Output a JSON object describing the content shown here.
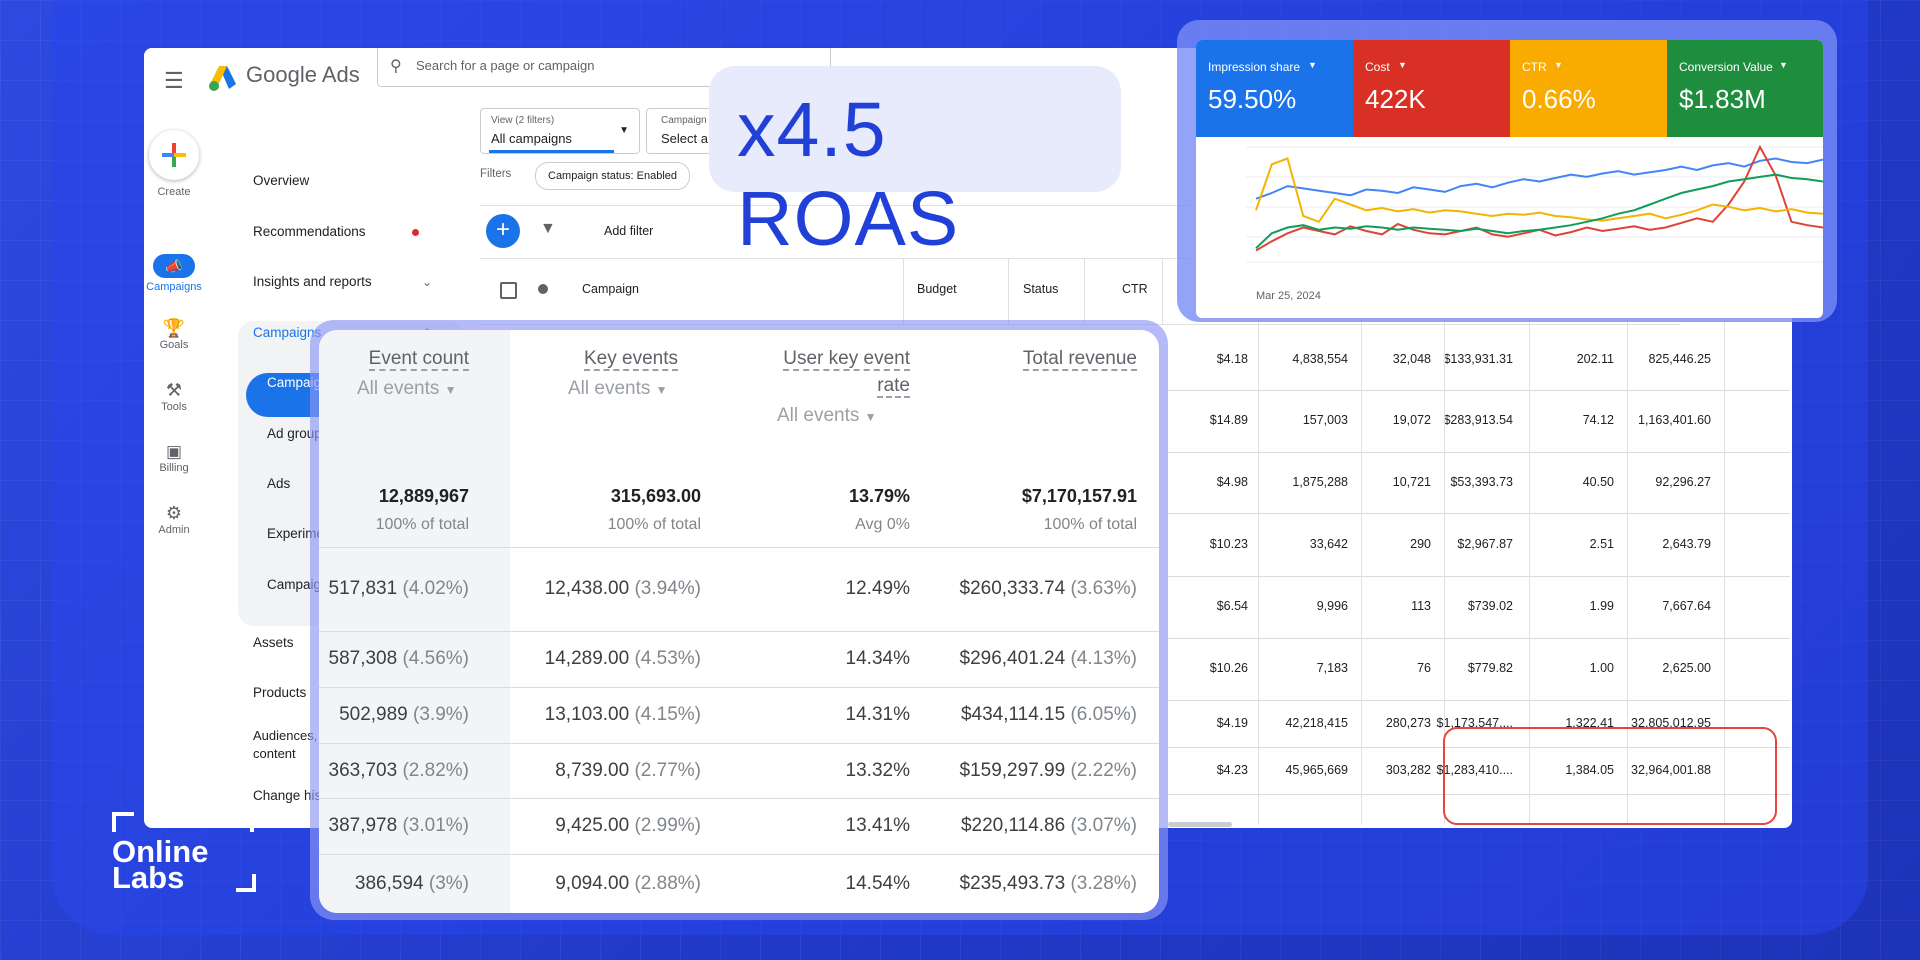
{
  "brand": {
    "name": "Google Ads",
    "search_placeholder": "Search for a page or campaign",
    "menu_icon": "hamburger-icon"
  },
  "rail": [
    {
      "label": "Create",
      "icon": "plus-icon"
    },
    {
      "label": "Campaigns",
      "icon": "megaphone-icon"
    },
    {
      "label": "Goals",
      "icon": "trophy-icon"
    },
    {
      "label": "Tools",
      "icon": "tools-icon"
    },
    {
      "label": "Billing",
      "icon": "credit-card-icon"
    },
    {
      "label": "Admin",
      "icon": "gear-icon"
    }
  ],
  "nav": {
    "overview": "Overview",
    "recommendations": "Recommendations",
    "insights": "Insights and reports",
    "campaigns_section": "Campaigns",
    "campaigns": "Campaigns",
    "ad_groups": "Ad groups",
    "ads": "Ads",
    "experiments": "Experimen",
    "campaign_x": "Campaign",
    "assets": "Assets",
    "products": "Products",
    "audiences_1": "Audiences, k",
    "audiences_2": "content",
    "change_history": "Change histo"
  },
  "controls": {
    "view_small": "View (2 filters)",
    "view_main": "All campaigns",
    "camp_small": "Campaign",
    "camp_main": "Select a",
    "filters_label": "Filters",
    "chip": "Campaign status: Enabled",
    "add_filter": "Add filter"
  },
  "table_headers": {
    "campaign": "Campaign",
    "budget": "Budget",
    "status": "Status",
    "ctr": "CTR"
  },
  "right_table": [
    [
      "$4.18",
      "4,838,554",
      "32,048",
      "$133,931.31",
      "202.11",
      "825,446.25"
    ],
    [
      "$14.89",
      "157,003",
      "19,072",
      "$283,913.54",
      "74.12",
      "1,163,401.60"
    ],
    [
      "$4.98",
      "1,875,288",
      "10,721",
      "$53,393.73",
      "40.50",
      "92,296.27"
    ],
    [
      "$10.23",
      "33,642",
      "290",
      "$2,967.87",
      "2.51",
      "2,643.79"
    ],
    [
      "$6.54",
      "9,996",
      "113",
      "$739.02",
      "1.99",
      "7,667.64"
    ],
    [
      "$10.26",
      "7,183",
      "76",
      "$779.82",
      "1.00",
      "2,625.00"
    ],
    [
      "$4.19",
      "42,218,415",
      "280,273",
      "$1,173,547....",
      "1,322.41",
      "32,805,012.95"
    ],
    [
      "$4.23",
      "45,965,669",
      "303,282",
      "$1,283,410....",
      "1,384.05",
      "32,964,001.88"
    ]
  ],
  "headline": "x4.5 ROAS",
  "metrics": [
    {
      "label": "Impression share",
      "value": "59.50%",
      "color": "#1a73e8"
    },
    {
      "label": "Cost",
      "value": "422K",
      "color": "#d93025"
    },
    {
      "label": "CTR",
      "value": "0.66%",
      "color": "#f9ab00"
    },
    {
      "label": "Conversion Value",
      "value": "$1.83M",
      "color": "#1e8e3e"
    }
  ],
  "chart_data": {
    "type": "line",
    "x_start_label": "Mar 25, 2024",
    "series": [
      {
        "name": "Impression share",
        "color": "#4285f4",
        "values": [
          0.55,
          0.6,
          0.66,
          0.64,
          0.62,
          0.6,
          0.58,
          0.63,
          0.62,
          0.6,
          0.65,
          0.63,
          0.61,
          0.66,
          0.68,
          0.65,
          0.69,
          0.72,
          0.7,
          0.73,
          0.76,
          0.74,
          0.77,
          0.79,
          0.76,
          0.78,
          0.8,
          0.83,
          0.8,
          0.84,
          0.86,
          0.83,
          0.88,
          0.9,
          0.87,
          0.86,
          0.89
        ]
      },
      {
        "name": "Cost",
        "color": "#db4437",
        "values": [
          0.1,
          0.18,
          0.25,
          0.3,
          0.27,
          0.24,
          0.31,
          0.27,
          0.24,
          0.33,
          0.28,
          0.25,
          0.24,
          0.27,
          0.3,
          0.24,
          0.22,
          0.25,
          0.28,
          0.23,
          0.26,
          0.3,
          0.27,
          0.29,
          0.31,
          0.28,
          0.3,
          0.34,
          0.38,
          0.35,
          0.5,
          0.7,
          1.0,
          0.75,
          0.35,
          0.32,
          0.3
        ]
      },
      {
        "name": "CTR",
        "color": "#f4b400",
        "values": [
          0.45,
          0.85,
          0.9,
          0.4,
          0.35,
          0.55,
          0.5,
          0.45,
          0.47,
          0.44,
          0.46,
          0.43,
          0.45,
          0.44,
          0.42,
          0.4,
          0.42,
          0.41,
          0.43,
          0.4,
          0.39,
          0.37,
          0.36,
          0.38,
          0.4,
          0.42,
          0.38,
          0.41,
          0.45,
          0.5,
          0.48,
          0.45,
          0.47,
          0.44,
          0.46,
          0.43,
          0.42
        ]
      },
      {
        "name": "Conversion Value",
        "color": "#0f9d58",
        "values": [
          0.12,
          0.25,
          0.3,
          0.32,
          0.28,
          0.3,
          0.29,
          0.31,
          0.3,
          0.28,
          0.3,
          0.29,
          0.28,
          0.27,
          0.29,
          0.27,
          0.25,
          0.27,
          0.28,
          0.3,
          0.32,
          0.35,
          0.38,
          0.42,
          0.45,
          0.5,
          0.55,
          0.6,
          0.63,
          0.66,
          0.7,
          0.72,
          0.74,
          0.76,
          0.73,
          0.72,
          0.7
        ]
      }
    ]
  },
  "ga": {
    "headers": [
      {
        "title": "Event count",
        "title2": "",
        "sub": "All events"
      },
      {
        "title": "Key events",
        "title2": "",
        "sub": "All events"
      },
      {
        "title": "User key event",
        "title2": "rate",
        "sub": "All events"
      },
      {
        "title": "Total revenue",
        "title2": "",
        "sub": ""
      }
    ],
    "totals": [
      {
        "value": "12,889,967",
        "pct": "100% of total"
      },
      {
        "value": "315,693.00",
        "pct": "100% of total"
      },
      {
        "value": "13.79%",
        "pct": "Avg 0%"
      },
      {
        "value": "$7,170,157.91",
        "pct": "100% of total"
      }
    ],
    "rows": [
      [
        {
          "v": "517,831",
          "p": "(4.02%)"
        },
        {
          "v": "12,438.00",
          "p": "(3.94%)"
        },
        {
          "v": "12.49%",
          "p": ""
        },
        {
          "v": "$260,333.74",
          "p": "(3.63%)"
        }
      ],
      [
        {
          "v": "587,308",
          "p": "(4.56%)"
        },
        {
          "v": "14,289.00",
          "p": "(4.53%)"
        },
        {
          "v": "14.34%",
          "p": ""
        },
        {
          "v": "$296,401.24",
          "p": "(4.13%)"
        }
      ],
      [
        {
          "v": "502,989",
          "p": "(3.9%)"
        },
        {
          "v": "13,103.00",
          "p": "(4.15%)"
        },
        {
          "v": "14.31%",
          "p": ""
        },
        {
          "v": "$434,114.15",
          "p": "(6.05%)"
        }
      ],
      [
        {
          "v": "363,703",
          "p": "(2.82%)"
        },
        {
          "v": "8,739.00",
          "p": "(2.77%)"
        },
        {
          "v": "13.32%",
          "p": ""
        },
        {
          "v": "$159,297.99",
          "p": "(2.22%)"
        }
      ],
      [
        {
          "v": "387,978",
          "p": "(3.01%)"
        },
        {
          "v": "9,425.00",
          "p": "(2.99%)"
        },
        {
          "v": "13.41%",
          "p": ""
        },
        {
          "v": "$220,114.86",
          "p": "(3.07%)"
        }
      ],
      [
        {
          "v": "386,594",
          "p": "(3%)"
        },
        {
          "v": "9,094.00",
          "p": "(2.88%)"
        },
        {
          "v": "14.54%",
          "p": ""
        },
        {
          "v": "$235,493.73",
          "p": "(3.28%)"
        }
      ]
    ]
  },
  "watermark": {
    "line1": "Online",
    "line2": "Labs"
  }
}
